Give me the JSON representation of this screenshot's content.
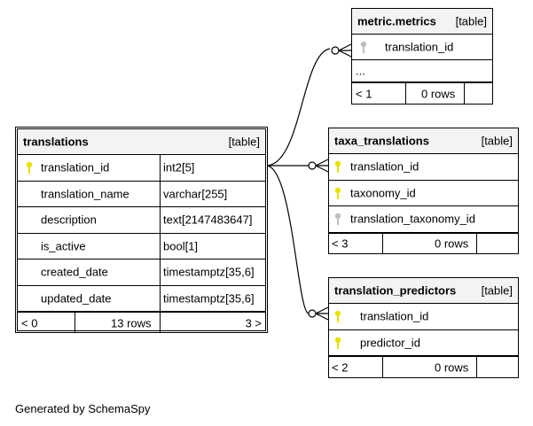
{
  "colors": {
    "primary_key": "#e8e000",
    "foreign_key": "#bdbdbd",
    "header_bg": "#f3f3f3"
  },
  "tables": {
    "translations": {
      "name": "translations",
      "kind": "[table]",
      "columns": [
        {
          "name": "translation_id",
          "type": "int2[5]",
          "key": "primary"
        },
        {
          "name": "translation_name",
          "type": "varchar[255]"
        },
        {
          "name": "description",
          "type": "text[2147483647]"
        },
        {
          "name": "is_active",
          "type": "bool[1]"
        },
        {
          "name": "created_date",
          "type": "timestamptz[35,6]"
        },
        {
          "name": "updated_date",
          "type": "timestamptz[35,6]"
        }
      ],
      "footer": {
        "parents": "< 0",
        "rows": "13 rows",
        "children": "3 >"
      }
    },
    "metric_metrics": {
      "name": "metric.metrics",
      "kind": "[table]",
      "columns": [
        {
          "name": "translation_id",
          "key": "foreign"
        },
        {
          "name": "..."
        }
      ],
      "footer": {
        "parents": "< 1",
        "rows": "0 rows"
      }
    },
    "taxa_translations": {
      "name": "taxa_translations",
      "kind": "[table]",
      "columns": [
        {
          "name": "translation_id",
          "key": "primary"
        },
        {
          "name": "taxonomy_id",
          "key": "primary"
        },
        {
          "name": "translation_taxonomy_id",
          "key": "foreign"
        }
      ],
      "footer": {
        "parents": "< 3",
        "rows": "0 rows"
      }
    },
    "translation_predictors": {
      "name": "translation_predictors",
      "kind": "[table]",
      "columns": [
        {
          "name": "translation_id",
          "key": "primary"
        },
        {
          "name": "predictor_id",
          "key": "primary"
        }
      ],
      "footer": {
        "parents": "< 2",
        "rows": "0 rows"
      }
    }
  },
  "generated_by": "Generated by SchemaSpy"
}
